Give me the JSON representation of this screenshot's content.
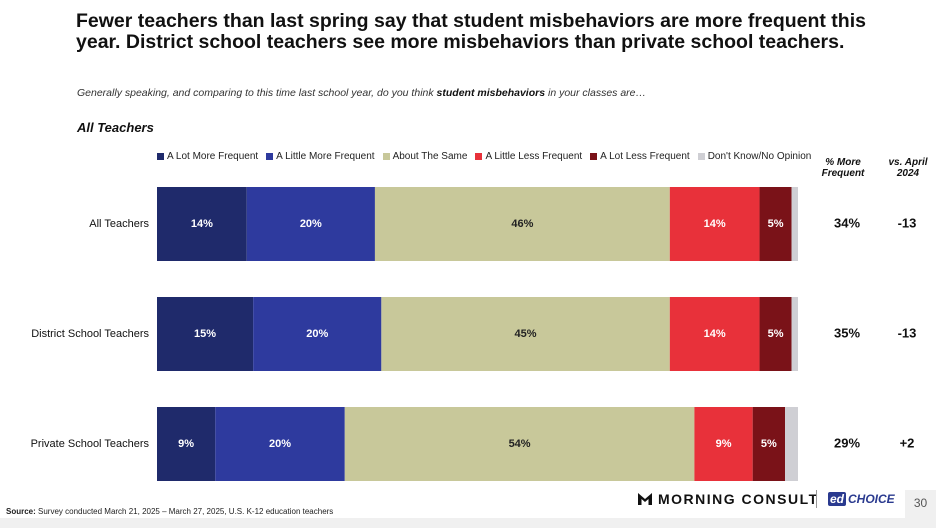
{
  "title": "Fewer teachers than last spring say that student misbehaviors are more frequent this year. District school teachers see more misbehaviors than private school teachers.",
  "subtitle": {
    "before": "Generally speaking, and comparing to this time last school year, do you think ",
    "bold": "student misbehaviors",
    "after": " in your classes are…"
  },
  "section_label": "All Teachers",
  "columns": {
    "more_frequent": "% More Frequent",
    "vs_april": "vs. April 2024"
  },
  "chart_data": {
    "type": "bar",
    "orientation": "horizontal",
    "stacked": true,
    "categories": [
      "All Teachers",
      "District School Teachers",
      "Private School Teachers"
    ],
    "series": [
      {
        "name": "A Lot More Frequent",
        "color": "#1f2a6b",
        "values": [
          14,
          15,
          9
        ],
        "labels": [
          "14%",
          "15%",
          "9%"
        ]
      },
      {
        "name": "A Little More Frequent",
        "color": "#2e3a9e",
        "values": [
          20,
          20,
          20
        ],
        "labels": [
          "20%",
          "20%",
          "20%"
        ]
      },
      {
        "name": "About The Same",
        "color": "#c8c89a",
        "values": [
          46,
          45,
          54
        ],
        "labels": [
          "46%",
          "45%",
          "54%"
        ]
      },
      {
        "name": "A Little Less Frequent",
        "color": "#e8313a",
        "values": [
          14,
          14,
          9
        ],
        "labels": [
          "14%",
          "14%",
          "9%"
        ]
      },
      {
        "name": "A Lot Less Frequent",
        "color": "#7a1218",
        "values": [
          5,
          5,
          5
        ],
        "labels": [
          "5%",
          "5%",
          "5%"
        ]
      },
      {
        "name": "Don't Know/No Opinion",
        "color": "#cfcfd4",
        "values": [
          1,
          1,
          2
        ],
        "labels": [
          "",
          "",
          ""
        ]
      }
    ],
    "more_frequent": [
      "34%",
      "35%",
      "29%"
    ],
    "vs_april_2024": [
      "-13",
      "-13",
      "+2"
    ],
    "xlim": [
      0,
      100
    ]
  },
  "source": {
    "label": "Source:",
    "text": " Survey conducted March 21, 2025 – March 27, 2025, U.S. K-12 education teachers"
  },
  "logos": {
    "morning_consult": "MORNING CONSULT",
    "edchoice_mark": "ed",
    "edchoice_text": "CHOICE"
  },
  "page_number": "30"
}
